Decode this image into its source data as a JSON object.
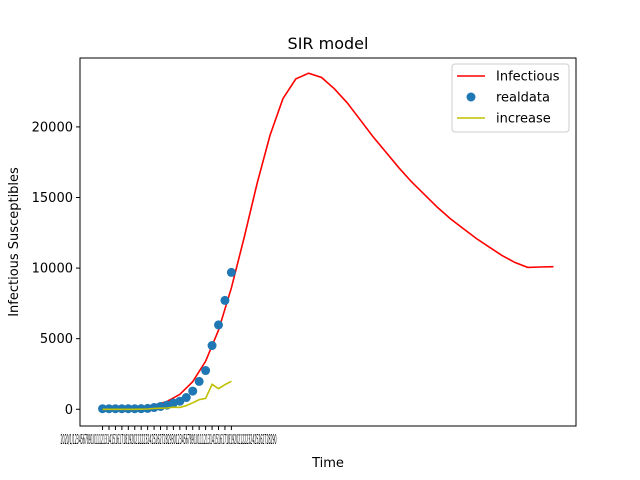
{
  "chart_data": {
    "type": "line",
    "title": "SIR model",
    "xlabel": "Time",
    "ylabel": "Infectious Susceptibles",
    "xlim": [
      -3.5,
      73.5
    ],
    "ylim": [
      -1185,
      24880
    ],
    "y_ticks": [
      0,
      5000,
      10000,
      15000,
      20000
    ],
    "x_ticks": [
      0,
      1,
      2,
      3,
      4,
      5,
      6,
      7,
      8,
      9,
      10,
      11,
      12,
      13,
      14,
      15,
      16,
      17,
      18,
      19,
      20
    ],
    "x_tick_labels": [
      "2020/1/",
      "2020/1/",
      "2020/1/",
      "2020/1/",
      "2020/1/",
      "2020/1/",
      "2020/1/",
      "2020/1/",
      "2020/1/",
      "2020/1/",
      "2020/1/",
      "2020/1/",
      "2020/1/",
      "2020/1/",
      "2020/1/",
      "2020/1/",
      "2020/1/",
      "2020/1/",
      "2020/1/",
      "2020/1/",
      "2020/1/"
    ],
    "x_tick_label_visible": "2020/1/12345678910111213141516171819202122232425262728293012345678910111213141516171819202122232425262728290",
    "grid": false,
    "legend_position": "top-right",
    "series": [
      {
        "name": "Infectious",
        "kind": "line",
        "color": "#ff0000",
        "x": [
          0,
          2,
          4,
          6,
          8,
          10,
          12,
          14,
          16,
          18,
          20,
          22,
          24,
          26,
          28,
          30,
          32,
          34,
          36,
          38,
          40,
          42,
          44,
          46,
          48,
          50,
          52,
          54,
          56,
          58,
          60,
          62,
          64,
          66,
          68,
          70
        ],
        "y": [
          10,
          30,
          70,
          140,
          280,
          550,
          1050,
          1950,
          3400,
          5600,
          8600,
          12200,
          16000,
          19400,
          22000,
          23400,
          23800,
          23500,
          22700,
          21700,
          20500,
          19300,
          18200,
          17100,
          16100,
          15200,
          14300,
          13500,
          12800,
          12100,
          11500,
          10900,
          10400,
          10050,
          10080,
          10100
        ]
      },
      {
        "name": "realdata",
        "kind": "scatter",
        "color": "#1f77b4",
        "x": [
          0,
          1,
          2,
          3,
          4,
          5,
          6,
          7,
          8,
          9,
          10,
          11,
          12,
          13,
          14,
          15,
          16,
          17,
          18,
          19,
          20
        ],
        "y": [
          40,
          41,
          41,
          41,
          41,
          41,
          45,
          62,
          121,
          198,
          291,
          440,
          571,
          830,
          1287,
          1975,
          2744,
          4515,
          5974,
          7711,
          9692
        ]
      },
      {
        "name": "increase",
        "kind": "line",
        "color": "#bfbf00",
        "x": [
          0,
          1,
          2,
          3,
          4,
          5,
          6,
          7,
          8,
          9,
          10,
          11,
          12,
          13,
          14,
          15,
          16,
          17,
          18,
          19,
          20
        ],
        "y": [
          0,
          1,
          0,
          0,
          0,
          0,
          4,
          17,
          59,
          77,
          93,
          149,
          131,
          259,
          457,
          688,
          769,
          1771,
          1459,
          1737,
          1981
        ]
      }
    ]
  }
}
